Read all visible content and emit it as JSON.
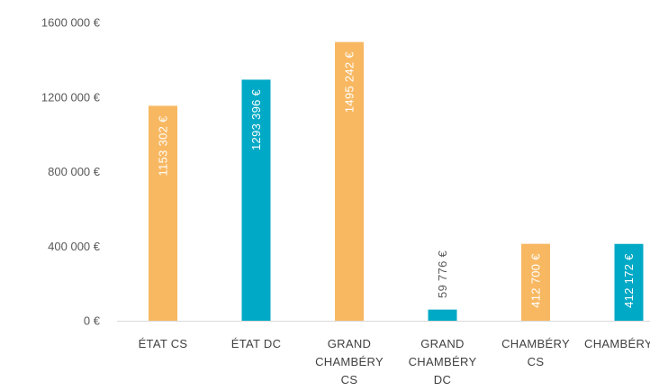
{
  "chart_data": {
    "type": "bar",
    "categories": [
      [
        "ÉTAT CS"
      ],
      [
        "ÉTAT DC"
      ],
      [
        "GRAND",
        "CHAMBÉRY",
        "CS"
      ],
      [
        "GRAND",
        "CHAMBÉRY",
        "DC"
      ],
      [
        "CHAMBÉRY",
        "CS"
      ],
      [
        "CHAMBÉRY DC"
      ]
    ],
    "values": [
      1153302,
      1293396,
      1495242,
      59776,
      412700,
      412172
    ],
    "data_labels": [
      "1153 302 €",
      "1293 396 €",
      "1495 242 €",
      "59 776 €",
      "412 700 €",
      "412 172 €"
    ],
    "colors": [
      "#F8B862",
      "#00A9C5",
      "#F8B862",
      "#00A9C5",
      "#F8B862",
      "#00A9C5"
    ],
    "ylim": [
      0,
      1600000
    ],
    "yticks": [
      0,
      400000,
      800000,
      1200000,
      1600000
    ],
    "ytick_labels": [
      "0 €",
      "400 000 €",
      "800 000 €",
      "1200 000 €",
      "1600 000 €"
    ],
    "title": "",
    "xlabel": "",
    "ylabel": "",
    "grid": false,
    "legend": "none"
  }
}
